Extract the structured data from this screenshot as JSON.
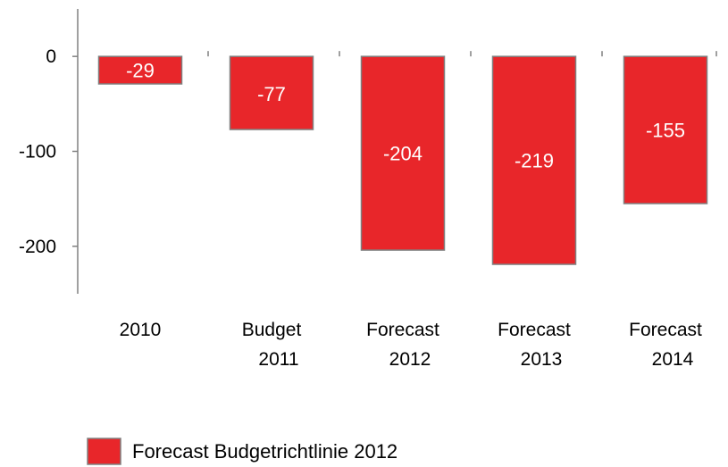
{
  "chart_data": {
    "type": "bar",
    "categories": [
      [
        "2010"
      ],
      [
        "Budget",
        "2011"
      ],
      [
        "Forecast",
        "2012"
      ],
      [
        "Forecast",
        "2013"
      ],
      [
        "Forecast",
        "2014"
      ]
    ],
    "series": [
      {
        "name": "Forecast Budgetrichtlinie 2012",
        "values": [
          -29,
          -77,
          -204,
          -219,
          -155
        ],
        "color": "#e8262a",
        "edge_color": "#808080"
      }
    ],
    "data_labels": [
      "-29",
      "-77",
      "-204",
      "-219",
      "-155"
    ],
    "y_ticks": [
      0,
      -100,
      -200
    ],
    "y_tick_labels": [
      "0",
      "-100",
      "-200"
    ],
    "ylim": [
      -250,
      50
    ],
    "grid": false,
    "legend": {
      "position": "bottom",
      "entries": [
        "Forecast Budgetrichtlinie 2012"
      ]
    },
    "title": "",
    "xlabel": "",
    "ylabel": ""
  }
}
